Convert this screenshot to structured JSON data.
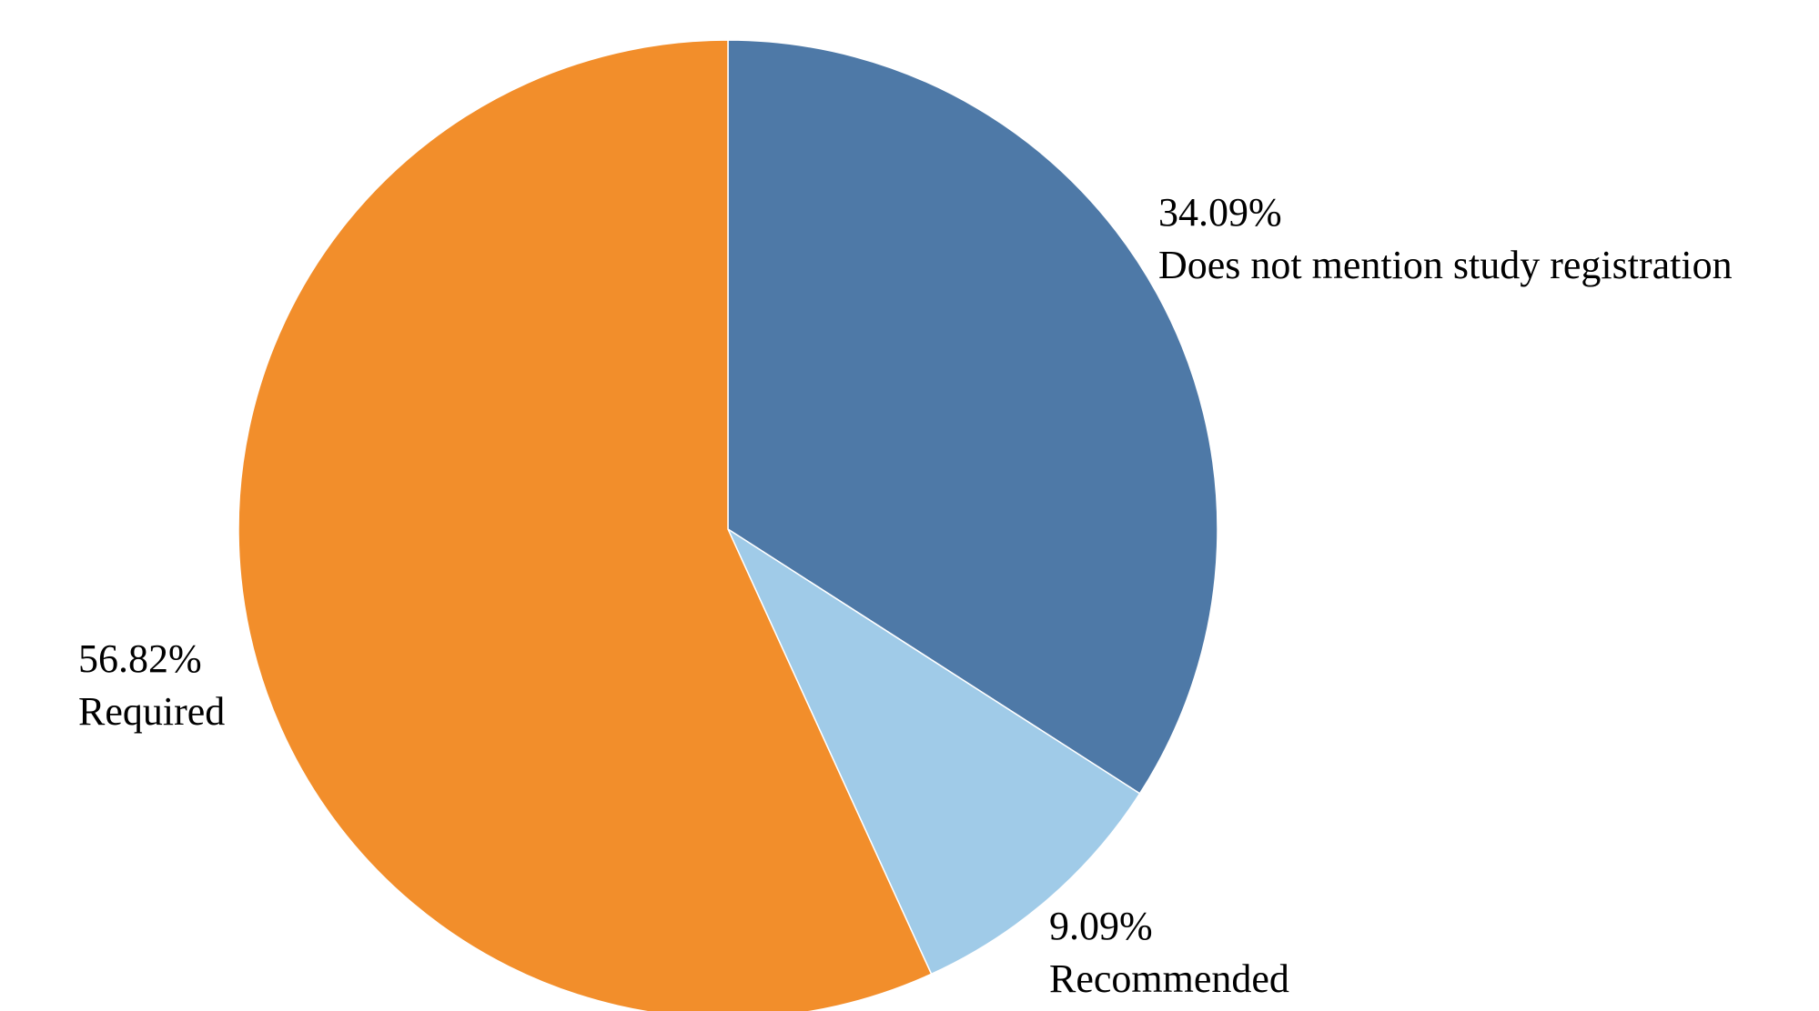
{
  "chart_data": {
    "type": "pie",
    "start_angle_deg": 0,
    "direction": "clockwise",
    "slices": [
      {
        "label": "Does not mention study registration",
        "value": 34.09,
        "display": "34.09%",
        "color": "#4e79a7"
      },
      {
        "label": "Recommended",
        "value": 9.09,
        "display": "9.09%",
        "color": "#a0cbe8"
      },
      {
        "label": "Required",
        "value": 56.82,
        "display": "56.82%",
        "color": "#f28e2b"
      }
    ]
  }
}
